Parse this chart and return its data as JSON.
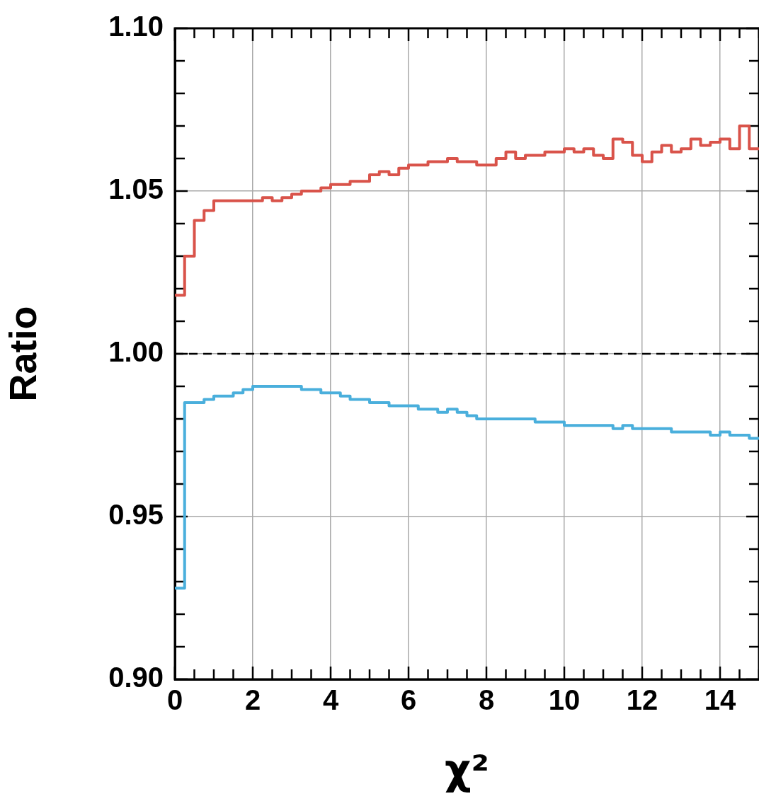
{
  "chart_data": {
    "type": "histogram",
    "xlabel": "χ²",
    "ylabel": "Ratio",
    "bins": [
      0,
      0.25,
      0.5,
      0.75,
      1,
      1.25,
      1.5,
      1.75,
      2,
      2.25,
      2.5,
      2.75,
      3,
      3.25,
      3.5,
      3.75,
      4,
      4.25,
      4.5,
      4.75,
      5,
      5.25,
      5.5,
      5.75,
      6,
      6.25,
      6.5,
      6.75,
      7,
      7.25,
      7.5,
      7.75,
      8,
      8.25,
      8.5,
      8.75,
      9,
      9.25,
      9.5,
      9.75,
      10,
      10.25,
      10.5,
      10.75,
      11,
      11.25,
      11.5,
      11.75,
      12,
      12.25,
      12.5,
      12.75,
      13,
      13.25,
      13.5,
      13.75,
      14,
      14.25,
      14.5,
      14.75,
      15
    ],
    "series": [
      {
        "color": "#d9534a",
        "values": [
          1.018,
          1.03,
          1.041,
          1.044,
          1.047,
          1.047,
          1.047,
          1.047,
          1.047,
          1.048,
          1.047,
          1.048,
          1.049,
          1.05,
          1.05,
          1.051,
          1.052,
          1.052,
          1.053,
          1.053,
          1.055,
          1.056,
          1.055,
          1.057,
          1.058,
          1.058,
          1.059,
          1.059,
          1.06,
          1.059,
          1.059,
          1.058,
          1.058,
          1.06,
          1.062,
          1.06,
          1.061,
          1.061,
          1.062,
          1.062,
          1.063,
          1.062,
          1.063,
          1.061,
          1.06,
          1.066,
          1.065,
          1.061,
          1.059,
          1.062,
          1.064,
          1.062,
          1.063,
          1.066,
          1.064,
          1.065,
          1.066,
          1.063,
          1.07,
          1.063
        ]
      },
      {
        "color": "#4aafdc",
        "values": [
          0.928,
          0.985,
          0.985,
          0.986,
          0.987,
          0.987,
          0.988,
          0.989,
          0.99,
          0.99,
          0.99,
          0.99,
          0.99,
          0.989,
          0.989,
          0.988,
          0.988,
          0.987,
          0.986,
          0.986,
          0.985,
          0.985,
          0.984,
          0.984,
          0.984,
          0.983,
          0.983,
          0.982,
          0.983,
          0.982,
          0.981,
          0.98,
          0.98,
          0.98,
          0.98,
          0.98,
          0.98,
          0.979,
          0.979,
          0.979,
          0.978,
          0.978,
          0.978,
          0.978,
          0.978,
          0.977,
          0.978,
          0.977,
          0.977,
          0.977,
          0.977,
          0.976,
          0.976,
          0.976,
          0.976,
          0.975,
          0.976,
          0.975,
          0.975,
          0.974
        ]
      }
    ],
    "xlim": [
      0,
      15
    ],
    "xticks": [
      0,
      2,
      4,
      6,
      8,
      10,
      12,
      14
    ],
    "ylim": [
      0.9,
      1.1
    ],
    "yticks": [
      {
        "value": 0.9,
        "label": "0.90"
      },
      {
        "value": 0.95,
        "label": "0.95"
      },
      {
        "value": 1,
        "label": "1.00"
      },
      1.05,
      {
        "value": 1.1,
        "label": "1.10"
      }
    ],
    "ref_lines": [
      {
        "axis": "y",
        "value": 1,
        "color": "#000000",
        "line_style": "dashed"
      }
    ],
    "grid": true,
    "legend": false
  }
}
